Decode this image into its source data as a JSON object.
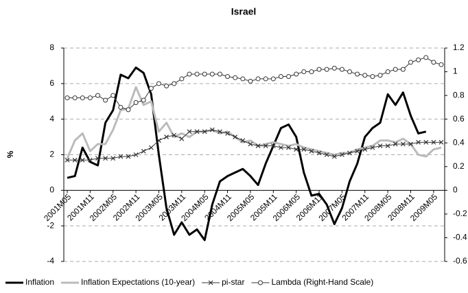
{
  "chart_data": {
    "type": "line",
    "title": "Israel",
    "y_label": "%",
    "categories": [
      "2001M05",
      null,
      null,
      "2001M11",
      null,
      null,
      "2002M05",
      null,
      null,
      "2002M11",
      null,
      null,
      "2003M05",
      null,
      null,
      "2003M11",
      null,
      null,
      "2004M05",
      null,
      null,
      "2004M11",
      null,
      null,
      "2005M05",
      null,
      null,
      "2005M11",
      null,
      null,
      "2006M05",
      null,
      null,
      "2006M11",
      null,
      null,
      "2007M05",
      null,
      null,
      "2007M11",
      null,
      null,
      "2008M05",
      null,
      null,
      "2008M11",
      null,
      null,
      "2009M05",
      null
    ],
    "ylim": [
      -4,
      8
    ],
    "yticks": [
      -4,
      -2,
      0,
      2,
      4,
      6,
      8
    ],
    "y2lim": [
      -0.6,
      1.2
    ],
    "y2ticks": [
      -0.6,
      -0.4,
      -0.2,
      0,
      0.2,
      0.4,
      0.6,
      0.8,
      1,
      1.2
    ],
    "grid": true,
    "legend": "bottom",
    "series": [
      {
        "name": "Inflation",
        "color": "#000000",
        "width": 3,
        "marker": "none",
        "values": [
          0.7,
          0.8,
          2.4,
          1.6,
          1.4,
          3.8,
          4.5,
          6.5,
          6.3,
          6.9,
          6.6,
          5.4,
          2.0,
          -1.0,
          -2.5,
          -1.8,
          -2.5,
          -2.2,
          -2.8,
          -0.8,
          0.5,
          0.8,
          1.0,
          1.2,
          0.8,
          0.3,
          1.5,
          2.5,
          3.5,
          3.7,
          3.0,
          1.0,
          -0.3,
          -0.2,
          -0.8,
          -1.9,
          -1.0,
          0.5,
          1.5,
          3.0,
          3.5,
          3.8,
          5.4,
          4.8,
          5.5,
          4.2,
          3.2,
          3.3,
          null,
          null
        ]
      },
      {
        "name": "Inflation Expectations (10-year)",
        "color": "#bbbbbb",
        "width": 3,
        "marker": "none",
        "values": [
          1.8,
          2.8,
          3.2,
          2.2,
          2.6,
          2.6,
          3.4,
          4.5,
          4.6,
          5.8,
          4.8,
          5.0,
          3.3,
          3.8,
          3.0,
          3.2,
          3.0,
          3.3,
          3.3,
          3.4,
          3.2,
          3.3,
          3.0,
          2.7,
          2.8,
          2.5,
          2.6,
          2.7,
          2.6,
          2.5,
          2.6,
          2.4,
          2.3,
          2.2,
          2.1,
          2.0,
          2.1,
          2.1,
          2.3,
          2.4,
          2.5,
          2.8,
          2.8,
          2.7,
          2.9,
          2.6,
          2.0,
          1.9,
          2.3,
          2.4
        ]
      },
      {
        "name": "pi-star",
        "color": "#333333",
        "width": 1,
        "marker": "x",
        "values": [
          1.7,
          1.7,
          1.7,
          1.7,
          1.8,
          1.8,
          1.8,
          1.9,
          1.9,
          2.0,
          2.2,
          2.4,
          2.8,
          3.0,
          3.1,
          2.9,
          3.3,
          3.3,
          3.3,
          3.4,
          3.3,
          3.2,
          3.0,
          2.8,
          2.6,
          2.5,
          2.5,
          2.5,
          2.4,
          2.4,
          2.3,
          2.3,
          2.2,
          2.1,
          2.0,
          1.9,
          2.0,
          2.1,
          2.2,
          2.3,
          2.4,
          2.5,
          2.5,
          2.6,
          2.6,
          2.6,
          2.7,
          2.7,
          2.7,
          2.7
        ]
      },
      {
        "name": "Lambda (Right-Hand Scale)",
        "color": "#333333",
        "width": 1,
        "marker": "circle",
        "axis": "y2",
        "values": [
          0.78,
          0.78,
          0.78,
          0.78,
          0.8,
          0.76,
          0.8,
          0.7,
          0.68,
          0.74,
          0.76,
          0.86,
          0.9,
          0.88,
          0.9,
          0.94,
          0.98,
          0.98,
          0.98,
          0.98,
          0.98,
          0.96,
          0.95,
          0.94,
          0.92,
          0.94,
          0.94,
          0.94,
          0.96,
          0.96,
          0.98,
          1.0,
          1.0,
          1.02,
          1.02,
          1.03,
          1.02,
          1.0,
          0.98,
          0.97,
          0.96,
          0.97,
          1.0,
          1.02,
          1.02,
          1.08,
          1.1,
          1.12,
          1.08,
          1.06
        ]
      }
    ]
  }
}
